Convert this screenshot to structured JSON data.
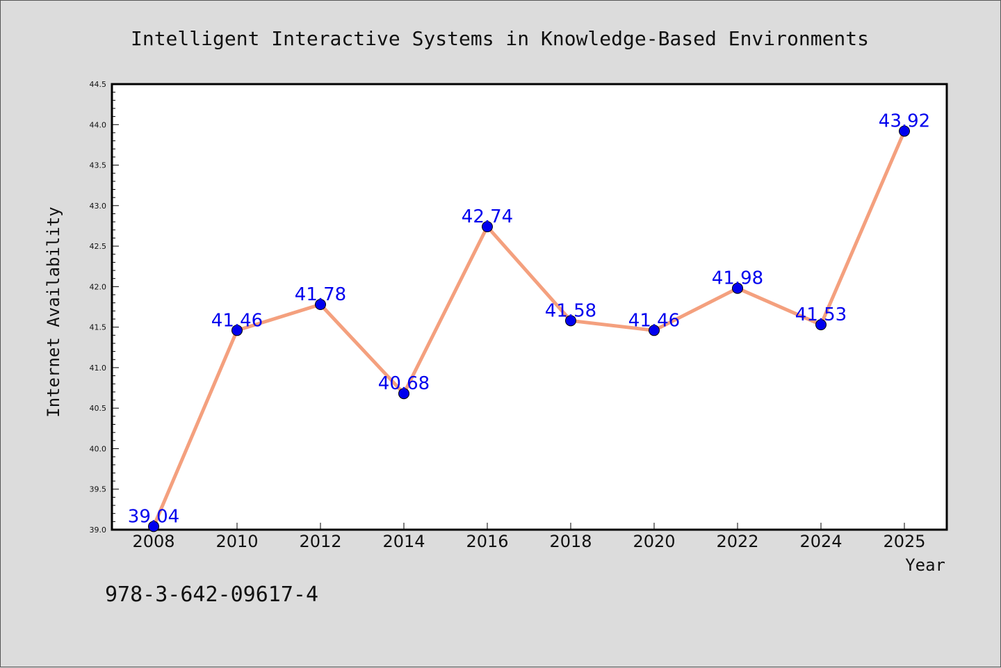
{
  "chart_data": {
    "type": "line",
    "title": "Intelligent Interactive Systems in Knowledge-Based Environments",
    "xlabel": "Year",
    "ylabel": "Internet Availability",
    "categories": [
      "2008",
      "2010",
      "2012",
      "2014",
      "2016",
      "2018",
      "2020",
      "2022",
      "2024",
      "2025"
    ],
    "series": [
      {
        "values": [
          39.04,
          41.46,
          41.78,
          40.68,
          42.74,
          41.58,
          41.46,
          41.98,
          41.53,
          43.92
        ],
        "labels": [
          "39.04",
          "41.46",
          "41.78",
          "40.68",
          "42.74",
          "41.58",
          "41.46",
          "41.98",
          "41.53",
          "43.92"
        ],
        "line_color": "#f4a07e",
        "marker_color": "#0000ee",
        "label_color": "#0000ee"
      }
    ],
    "ylim": [
      39.0,
      44.5
    ],
    "yticks": [
      "39.0",
      "39.5",
      "40.0",
      "40.5",
      "41.0",
      "41.5",
      "42.0",
      "42.5",
      "43.0",
      "43.5",
      "44.0",
      "44.5"
    ],
    "grid": false,
    "legend": "none",
    "background": "#dcdcdc",
    "plot_background": "#ffffff"
  },
  "footer_text": "978-3-642-09617-4"
}
